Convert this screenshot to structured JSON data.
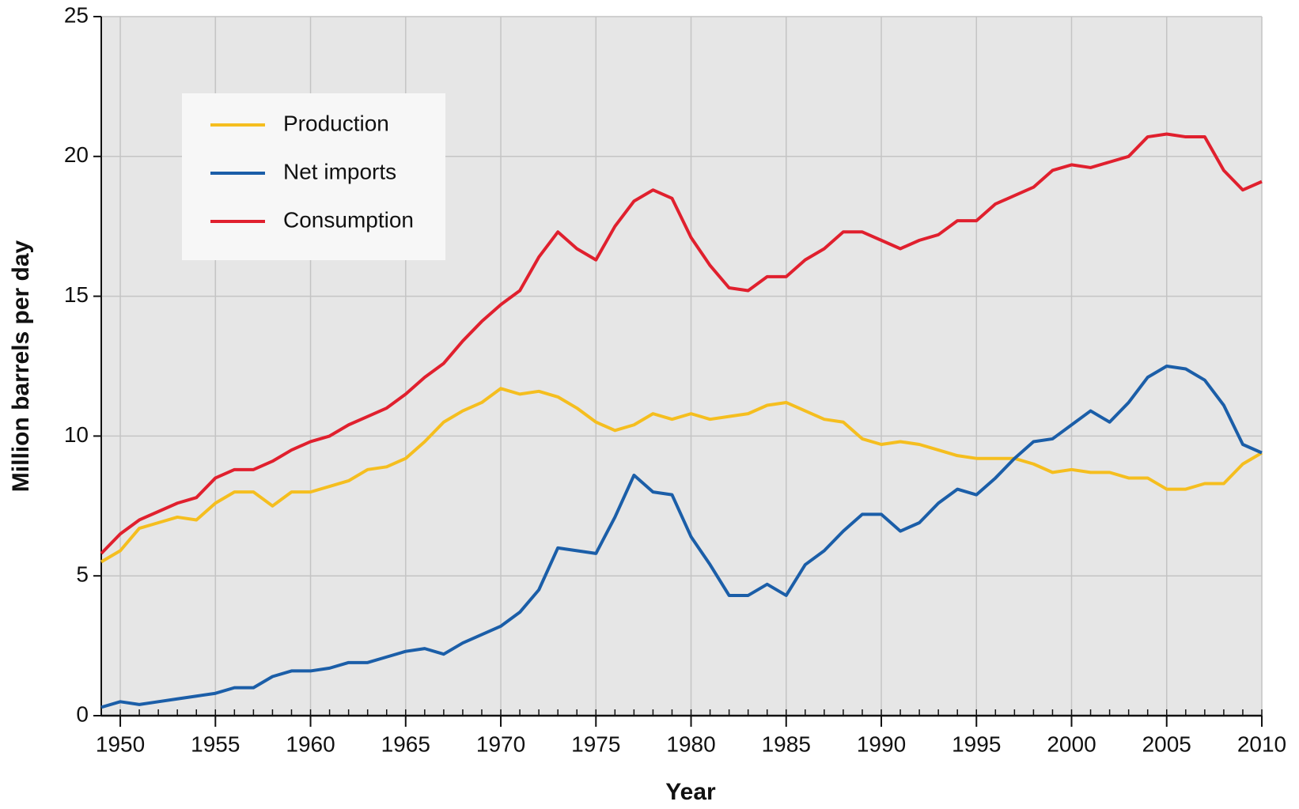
{
  "chart_data": {
    "type": "line",
    "xlabel": "Year",
    "ylabel": "Million barrels per day",
    "x": [
      1949,
      1950,
      1951,
      1952,
      1953,
      1954,
      1955,
      1956,
      1957,
      1958,
      1959,
      1960,
      1961,
      1962,
      1963,
      1964,
      1965,
      1966,
      1967,
      1968,
      1969,
      1970,
      1971,
      1972,
      1973,
      1974,
      1975,
      1976,
      1977,
      1978,
      1979,
      1980,
      1981,
      1982,
      1983,
      1984,
      1985,
      1986,
      1987,
      1988,
      1989,
      1990,
      1991,
      1992,
      1993,
      1994,
      1995,
      1996,
      1997,
      1998,
      1999,
      2000,
      2001,
      2002,
      2003,
      2004,
      2005,
      2006,
      2007,
      2008,
      2009,
      2010
    ],
    "series": [
      {
        "name": "Production",
        "color": "#f5be1f",
        "values": [
          5.5,
          5.9,
          6.7,
          6.9,
          7.1,
          7.0,
          7.6,
          8.0,
          8.0,
          7.5,
          8.0,
          8.0,
          8.2,
          8.4,
          8.8,
          8.9,
          9.2,
          9.8,
          10.5,
          10.9,
          11.2,
          11.7,
          11.5,
          11.6,
          11.4,
          11.0,
          10.5,
          10.2,
          10.4,
          10.8,
          10.6,
          10.8,
          10.6,
          10.7,
          10.8,
          11.1,
          11.2,
          10.9,
          10.6,
          10.5,
          9.9,
          9.7,
          9.8,
          9.7,
          9.5,
          9.3,
          9.2,
          9.2,
          9.2,
          9.0,
          8.7,
          8.8,
          8.7,
          8.7,
          8.5,
          8.5,
          8.1,
          8.1,
          8.3,
          8.3,
          9.0,
          9.4
        ]
      },
      {
        "name": "Net imports",
        "color": "#1b5ea8",
        "values": [
          0.3,
          0.5,
          0.4,
          0.5,
          0.6,
          0.7,
          0.8,
          1.0,
          1.0,
          1.4,
          1.6,
          1.6,
          1.7,
          1.9,
          1.9,
          2.1,
          2.3,
          2.4,
          2.2,
          2.6,
          2.9,
          3.2,
          3.7,
          4.5,
          6.0,
          5.9,
          5.8,
          7.1,
          8.6,
          8.0,
          7.9,
          6.4,
          5.4,
          4.3,
          4.3,
          4.7,
          4.3,
          5.4,
          5.9,
          6.6,
          7.2,
          7.2,
          6.6,
          6.9,
          7.6,
          8.1,
          7.9,
          8.5,
          9.2,
          9.8,
          9.9,
          10.4,
          10.9,
          10.5,
          11.2,
          12.1,
          12.5,
          12.4,
          12.0,
          11.1,
          9.7,
          9.4
        ]
      },
      {
        "name": "Consumption",
        "color": "#e0202e",
        "values": [
          5.8,
          6.5,
          7.0,
          7.3,
          7.6,
          7.8,
          8.5,
          8.8,
          8.8,
          9.1,
          9.5,
          9.8,
          10.0,
          10.4,
          10.7,
          11.0,
          11.5,
          12.1,
          12.6,
          13.4,
          14.1,
          14.7,
          15.2,
          16.4,
          17.3,
          16.7,
          16.3,
          17.5,
          18.4,
          18.8,
          18.5,
          17.1,
          16.1,
          15.3,
          15.2,
          15.7,
          15.7,
          16.3,
          16.7,
          17.3,
          17.3,
          17.0,
          16.7,
          17.0,
          17.2,
          17.7,
          17.7,
          18.3,
          18.6,
          18.9,
          19.5,
          19.7,
          19.6,
          19.8,
          20.0,
          20.7,
          20.8,
          20.7,
          20.7,
          19.5,
          18.8,
          19.1
        ]
      }
    ],
    "xlim": [
      1949,
      2010
    ],
    "xticks": [
      1950,
      1955,
      1960,
      1965,
      1970,
      1975,
      1980,
      1985,
      1990,
      1995,
      2000,
      2005,
      2010
    ],
    "ylim": [
      0,
      25
    ],
    "yticks": [
      0,
      5,
      10,
      15,
      20,
      25
    ],
    "grid": true,
    "legend": "upper left"
  }
}
